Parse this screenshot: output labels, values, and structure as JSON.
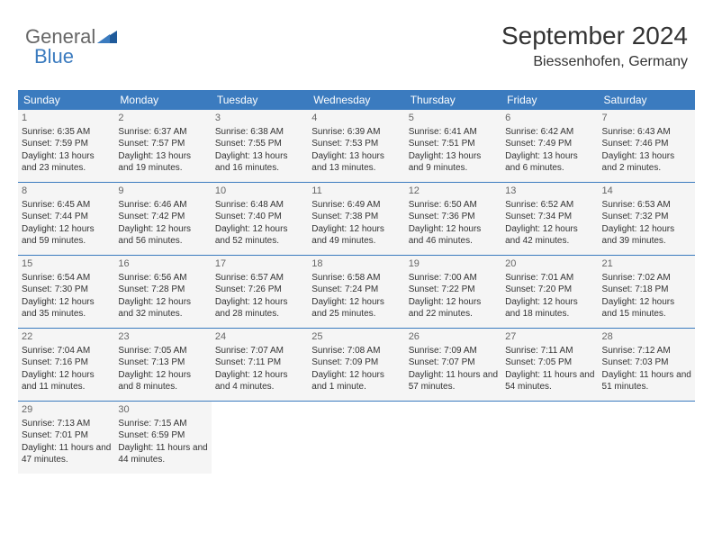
{
  "brand": {
    "part1": "General",
    "part2": "Blue"
  },
  "title": "September 2024",
  "location": "Biessenhofen, Germany",
  "colors": {
    "header_bg": "#3b7bbf",
    "header_text": "#ffffff",
    "cell_bg": "#f5f5f5",
    "border": "#3b7bbf",
    "text": "#333333",
    "brand_gray": "#666666",
    "brand_blue": "#3b7bbf"
  },
  "dayNames": [
    "Sunday",
    "Monday",
    "Tuesday",
    "Wednesday",
    "Thursday",
    "Friday",
    "Saturday"
  ],
  "days": [
    {
      "n": 1,
      "sr": "6:35 AM",
      "ss": "7:59 PM",
      "dl": "13 hours and 23 minutes."
    },
    {
      "n": 2,
      "sr": "6:37 AM",
      "ss": "7:57 PM",
      "dl": "13 hours and 19 minutes."
    },
    {
      "n": 3,
      "sr": "6:38 AM",
      "ss": "7:55 PM",
      "dl": "13 hours and 16 minutes."
    },
    {
      "n": 4,
      "sr": "6:39 AM",
      "ss": "7:53 PM",
      "dl": "13 hours and 13 minutes."
    },
    {
      "n": 5,
      "sr": "6:41 AM",
      "ss": "7:51 PM",
      "dl": "13 hours and 9 minutes."
    },
    {
      "n": 6,
      "sr": "6:42 AM",
      "ss": "7:49 PM",
      "dl": "13 hours and 6 minutes."
    },
    {
      "n": 7,
      "sr": "6:43 AM",
      "ss": "7:46 PM",
      "dl": "13 hours and 2 minutes."
    },
    {
      "n": 8,
      "sr": "6:45 AM",
      "ss": "7:44 PM",
      "dl": "12 hours and 59 minutes."
    },
    {
      "n": 9,
      "sr": "6:46 AM",
      "ss": "7:42 PM",
      "dl": "12 hours and 56 minutes."
    },
    {
      "n": 10,
      "sr": "6:48 AM",
      "ss": "7:40 PM",
      "dl": "12 hours and 52 minutes."
    },
    {
      "n": 11,
      "sr": "6:49 AM",
      "ss": "7:38 PM",
      "dl": "12 hours and 49 minutes."
    },
    {
      "n": 12,
      "sr": "6:50 AM",
      "ss": "7:36 PM",
      "dl": "12 hours and 46 minutes."
    },
    {
      "n": 13,
      "sr": "6:52 AM",
      "ss": "7:34 PM",
      "dl": "12 hours and 42 minutes."
    },
    {
      "n": 14,
      "sr": "6:53 AM",
      "ss": "7:32 PM",
      "dl": "12 hours and 39 minutes."
    },
    {
      "n": 15,
      "sr": "6:54 AM",
      "ss": "7:30 PM",
      "dl": "12 hours and 35 minutes."
    },
    {
      "n": 16,
      "sr": "6:56 AM",
      "ss": "7:28 PM",
      "dl": "12 hours and 32 minutes."
    },
    {
      "n": 17,
      "sr": "6:57 AM",
      "ss": "7:26 PM",
      "dl": "12 hours and 28 minutes."
    },
    {
      "n": 18,
      "sr": "6:58 AM",
      "ss": "7:24 PM",
      "dl": "12 hours and 25 minutes."
    },
    {
      "n": 19,
      "sr": "7:00 AM",
      "ss": "7:22 PM",
      "dl": "12 hours and 22 minutes."
    },
    {
      "n": 20,
      "sr": "7:01 AM",
      "ss": "7:20 PM",
      "dl": "12 hours and 18 minutes."
    },
    {
      "n": 21,
      "sr": "7:02 AM",
      "ss": "7:18 PM",
      "dl": "12 hours and 15 minutes."
    },
    {
      "n": 22,
      "sr": "7:04 AM",
      "ss": "7:16 PM",
      "dl": "12 hours and 11 minutes."
    },
    {
      "n": 23,
      "sr": "7:05 AM",
      "ss": "7:13 PM",
      "dl": "12 hours and 8 minutes."
    },
    {
      "n": 24,
      "sr": "7:07 AM",
      "ss": "7:11 PM",
      "dl": "12 hours and 4 minutes."
    },
    {
      "n": 25,
      "sr": "7:08 AM",
      "ss": "7:09 PM",
      "dl": "12 hours and 1 minute."
    },
    {
      "n": 26,
      "sr": "7:09 AM",
      "ss": "7:07 PM",
      "dl": "11 hours and 57 minutes."
    },
    {
      "n": 27,
      "sr": "7:11 AM",
      "ss": "7:05 PM",
      "dl": "11 hours and 54 minutes."
    },
    {
      "n": 28,
      "sr": "7:12 AM",
      "ss": "7:03 PM",
      "dl": "11 hours and 51 minutes."
    },
    {
      "n": 29,
      "sr": "7:13 AM",
      "ss": "7:01 PM",
      "dl": "11 hours and 47 minutes."
    },
    {
      "n": 30,
      "sr": "7:15 AM",
      "ss": "6:59 PM",
      "dl": "11 hours and 44 minutes."
    }
  ],
  "labels": {
    "sunrise": "Sunrise:",
    "sunset": "Sunset:",
    "daylight": "Daylight:"
  }
}
